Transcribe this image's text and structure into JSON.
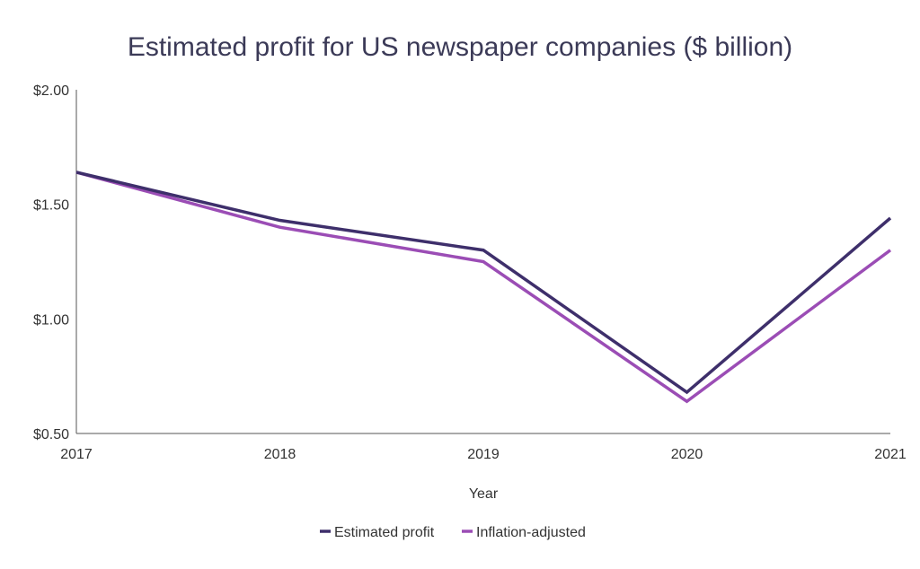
{
  "colors": {
    "estimated": "#3e2f6b",
    "inflation": "#9b4db5",
    "axis": "#555555",
    "text": "#333333"
  },
  "chart_data": {
    "type": "line",
    "title": "Estimated profit for US newspaper companies ($ billion)",
    "xlabel": "Year",
    "ylabel": "",
    "categories": [
      "2017",
      "2018",
      "2019",
      "2020",
      "2021"
    ],
    "y_ticks": [
      0.5,
      1.0,
      1.5,
      2.0
    ],
    "y_tick_labels": [
      "$0.50",
      "$1.00",
      "$1.50",
      "$2.00"
    ],
    "ylim": [
      0.5,
      2.0
    ],
    "grid": false,
    "legend_position": "bottom-center",
    "series": [
      {
        "name": "Estimated profit",
        "values": [
          1.64,
          1.43,
          1.3,
          0.68,
          1.44
        ]
      },
      {
        "name": "Inflation-adjusted",
        "values": [
          1.64,
          1.4,
          1.25,
          0.64,
          1.3
        ]
      }
    ]
  }
}
